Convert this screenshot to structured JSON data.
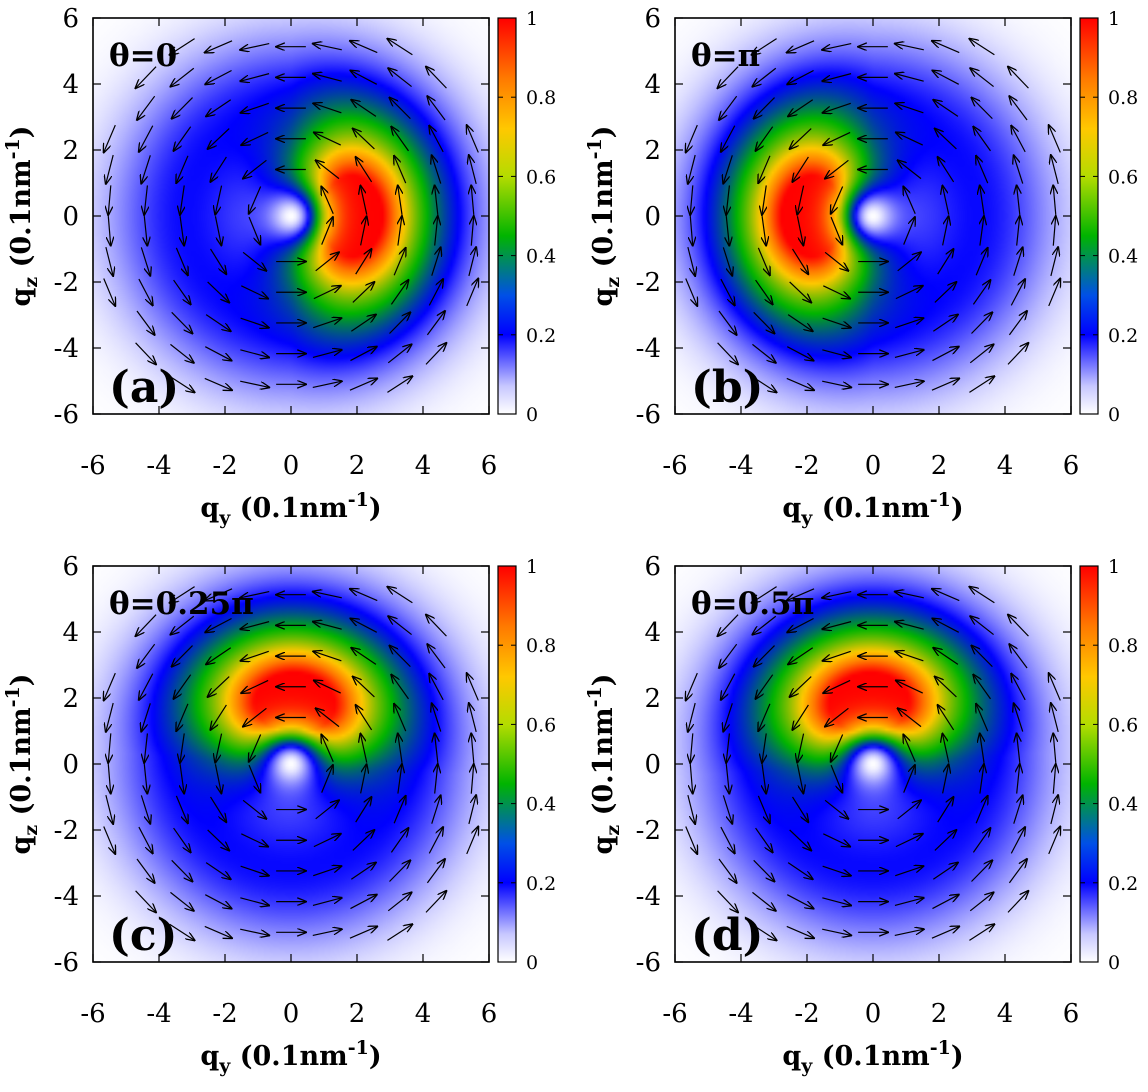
{
  "chart_data": [
    {
      "type": "heatmap",
      "panel_label": "(a)",
      "title": "θ=0",
      "xlabel": {
        "main": "q",
        "sub": "y",
        "unit": " (0.1nm",
        "sup": "-1",
        "close": ")"
      },
      "ylabel": {
        "main": "q",
        "sub": "z",
        "unit": " (0.1nm",
        "sup": "-1",
        "close": ")"
      },
      "xlim": [
        -6,
        6
      ],
      "ylim": [
        -6,
        6
      ],
      "xticks": [
        "-6",
        "-4",
        "-2",
        "0",
        "2",
        "4",
        "6"
      ],
      "yticks": [
        "-6",
        "-4",
        "-2",
        "0",
        "2",
        "4",
        "6"
      ],
      "colorbar": {
        "range": [
          0,
          1
        ],
        "ticks": [
          "0",
          "0.2",
          "0.4",
          "0.6",
          "0.8",
          "1"
        ]
      },
      "intensity_peak": {
        "qy": 1.6,
        "qz": 0.0,
        "value": 1.0
      },
      "vector_field": "counterclockwise circulation of unit arrows"
    },
    {
      "type": "heatmap",
      "panel_label": "(b)",
      "title": "θ=π",
      "xlabel": {
        "main": "q",
        "sub": "y",
        "unit": " (0.1nm",
        "sup": "-1",
        "close": ")"
      },
      "ylabel": {
        "main": "q",
        "sub": "z",
        "unit": " (0.1nm",
        "sup": "-1",
        "close": ")"
      },
      "xlim": [
        -6,
        6
      ],
      "ylim": [
        -6,
        6
      ],
      "xticks": [
        "-6",
        "-4",
        "-2",
        "0",
        "2",
        "4",
        "6"
      ],
      "yticks": [
        "-6",
        "-4",
        "-2",
        "0",
        "2",
        "4",
        "6"
      ],
      "colorbar": {
        "range": [
          0,
          1
        ],
        "ticks": [
          "0",
          "0.2",
          "0.4",
          "0.6",
          "0.8",
          "1"
        ]
      },
      "intensity_peak": {
        "qy": -1.6,
        "qz": 0.0,
        "value": 1.0
      },
      "vector_field": "counterclockwise circulation of unit arrows"
    },
    {
      "type": "heatmap",
      "panel_label": "(c)",
      "title": "θ=0.25π",
      "xlabel": {
        "main": "q",
        "sub": "y",
        "unit": " (0.1nm",
        "sup": "-1",
        "close": ")"
      },
      "ylabel": {
        "main": "q",
        "sub": "z",
        "unit": " (0.1nm",
        "sup": "-1",
        "close": ")"
      },
      "xlim": [
        -6,
        6
      ],
      "ylim": [
        -6,
        6
      ],
      "xticks": [
        "-6",
        "-4",
        "-2",
        "0",
        "2",
        "4",
        "6"
      ],
      "yticks": [
        "-6",
        "-4",
        "-2",
        "0",
        "2",
        "4",
        "6"
      ],
      "colorbar": {
        "range": [
          0,
          1
        ],
        "ticks": [
          "0",
          "0.2",
          "0.4",
          "0.6",
          "0.8",
          "1"
        ]
      },
      "intensity_peak": {
        "qy": 0.1,
        "qz": 1.6,
        "value": 1.0
      },
      "vector_field": "counterclockwise circulation of unit arrows"
    },
    {
      "type": "heatmap",
      "panel_label": "(d)",
      "title": "θ=0.5π",
      "xlabel": {
        "main": "q",
        "sub": "y",
        "unit": " (0.1nm",
        "sup": "-1",
        "close": ")"
      },
      "ylabel": {
        "main": "q",
        "sub": "z",
        "unit": " (0.1nm",
        "sup": "-1",
        "close": ")"
      },
      "xlim": [
        -6,
        6
      ],
      "ylim": [
        -6,
        6
      ],
      "xticks": [
        "-6",
        "-4",
        "-2",
        "0",
        "2",
        "4",
        "6"
      ],
      "yticks": [
        "-6",
        "-4",
        "-2",
        "0",
        "2",
        "4",
        "6"
      ],
      "colorbar": {
        "range": [
          0,
          1
        ],
        "ticks": [
          "0",
          "0.2",
          "0.4",
          "0.6",
          "0.8",
          "1"
        ]
      },
      "intensity_peak": {
        "qy": -0.1,
        "qz": 1.6,
        "value": 1.0
      },
      "vector_field": "counterclockwise circulation of unit arrows"
    }
  ],
  "colors": {
    "colormap": [
      "#ffffff",
      "#0000ff",
      "#00b400",
      "#ffc800",
      "#ff7800",
      "#ff0000"
    ],
    "arrow": "#000000",
    "frame": "#000000"
  }
}
